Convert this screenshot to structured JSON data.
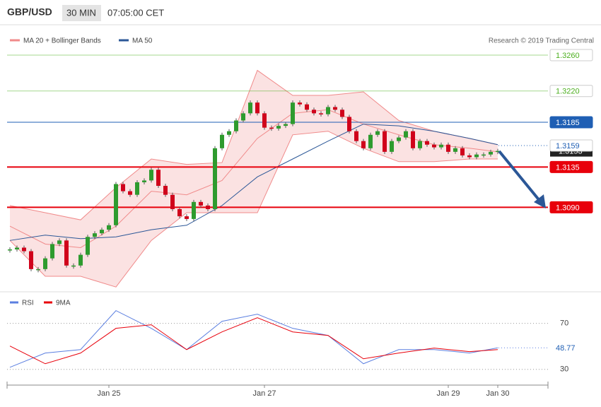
{
  "header": {
    "symbol": "GBP/USD",
    "interval": "30 MIN",
    "time": "07:05:00 CET"
  },
  "chart_data": [
    {
      "type": "candlestick",
      "legend": [
        {
          "name": "MA 20 + Bollinger Bands",
          "color": "#f08a8a"
        },
        {
          "name": "MA 50",
          "color": "#2b5797"
        }
      ],
      "credit": "Research © 2019 Trading Central",
      "categories": [
        null,
        null,
        null,
        null,
        null,
        null,
        null,
        null,
        null,
        null,
        null,
        null,
        null,
        null,
        "Jan 25",
        null,
        null,
        null,
        null,
        null,
        null,
        null,
        null,
        null,
        null,
        null,
        null,
        null,
        null,
        null,
        null,
        null,
        null,
        null,
        null,
        null,
        "Jan 27",
        null,
        null,
        null,
        null,
        null,
        null,
        null,
        null,
        null,
        null,
        null,
        null,
        null,
        null,
        null,
        null,
        null,
        null,
        null,
        null,
        null,
        null,
        null,
        null,
        null,
        "Jan 29",
        null,
        null,
        null,
        null,
        null,
        null,
        "Jan 30"
      ],
      "ylim": [
        1.2998,
        1.329
      ],
      "series": [
        {
          "name": "GBP/USD",
          "up_color": "#2e9b2e",
          "down_color": "#d0021b",
          "values": [
            1.3043,
            1.3045,
            1.3041,
            1.3021,
            1.3021,
            1.3033,
            1.3049,
            1.3053,
            1.3025,
            1.3025,
            1.3037,
            1.3057,
            1.3061,
            1.3065,
            1.307,
            1.3116,
            1.3108,
            1.3104,
            1.3118,
            1.312,
            1.3132,
            1.3114,
            1.3104,
            1.3088,
            1.308,
            1.3077,
            1.3096,
            1.3092,
            1.3088,
            1.3156,
            1.3171,
            1.3175,
            1.3187,
            1.3195,
            1.3207,
            1.3195,
            1.3179,
            1.3178,
            1.3181,
            1.3183,
            1.3207,
            1.3205,
            1.3199,
            1.3195,
            1.3194,
            1.3202,
            1.3199,
            1.3191,
            1.3175,
            1.3164,
            1.3156,
            1.3171,
            1.3175,
            1.3152,
            1.3164,
            1.3168,
            1.3175,
            1.3156,
            1.3164,
            1.316,
            1.3157,
            1.316,
            1.3152,
            1.3156,
            1.3148,
            1.3146,
            1.3149,
            1.3149,
            1.3152,
            1.3153
          ]
        }
      ],
      "bands": {
        "x": [
          0,
          5,
          10,
          15,
          20,
          25,
          30,
          35,
          40,
          45,
          50,
          55,
          60,
          65,
          69
        ],
        "ma20": [
          1.3069,
          1.3049,
          1.3045,
          1.3069,
          1.3108,
          1.3104,
          1.312,
          1.3167,
          1.3195,
          1.3199,
          1.3183,
          1.3171,
          1.316,
          1.3156,
          1.3152
        ],
        "upper": [
          1.3092,
          1.3084,
          1.3076,
          1.3112,
          1.3144,
          1.3138,
          1.314,
          1.3243,
          1.3215,
          1.3215,
          1.3219,
          1.3187,
          1.3175,
          1.3167,
          1.316
        ],
        "lower": [
          1.3053,
          1.3013,
          1.3013,
          1.3001,
          1.3053,
          1.3084,
          1.3084,
          1.3084,
          1.3171,
          1.3175,
          1.3156,
          1.3141,
          1.3141,
          1.3144,
          1.3144
        ]
      },
      "ma50": {
        "x": [
          0,
          5,
          10,
          15,
          20,
          25,
          30,
          35,
          40,
          45,
          50,
          55,
          60,
          65,
          69
        ],
        "values": [
          1.3053,
          1.3059,
          1.3055,
          1.3057,
          1.3065,
          1.307,
          1.3092,
          1.3124,
          1.3144,
          1.3164,
          1.3183,
          1.3181,
          1.3175,
          1.3167,
          1.316
        ]
      },
      "levels": [
        {
          "value": 1.326,
          "label": "1.3260",
          "color": "#4caf1f",
          "filled": false
        },
        {
          "value": 1.322,
          "label": "1.3220",
          "color": "#4caf1f",
          "filled": false
        },
        {
          "value": 1.3185,
          "label": "1.3185",
          "color": "#1f5fb4",
          "filled": true
        },
        {
          "value": 1.3159,
          "label": "1.3159",
          "color": "#1f5fb4",
          "filled": false
        },
        {
          "value": 1.3135,
          "label": "1.3135",
          "color": "#e8000b",
          "filled": true
        },
        {
          "value": 1.309,
          "label": "1.3090",
          "color": "#e8000b",
          "filled": true
        }
      ]
    },
    {
      "type": "line",
      "x": [
        0,
        5,
        10,
        15,
        20,
        25,
        30,
        35,
        40,
        45,
        50,
        55,
        60,
        65,
        69
      ],
      "ylim": [
        20,
        95
      ],
      "yticks": [
        30,
        70
      ],
      "series": [
        {
          "name": "RSI",
          "color": "#5b7fe0",
          "values": [
            31.8,
            44.2,
            47.2,
            81.1,
            65.7,
            47.2,
            71.8,
            78,
            65.7,
            59.5,
            34.9,
            47.2,
            47.2,
            44.2,
            48.77
          ]
        },
        {
          "name": "9MA",
          "color": "#e8000b",
          "values": [
            50.3,
            34.9,
            44.2,
            65.7,
            68.8,
            47.2,
            62.6,
            74.9,
            62.6,
            59.5,
            39.2,
            44.2,
            48.5,
            45.4,
            47.2
          ]
        }
      ]
    }
  ]
}
